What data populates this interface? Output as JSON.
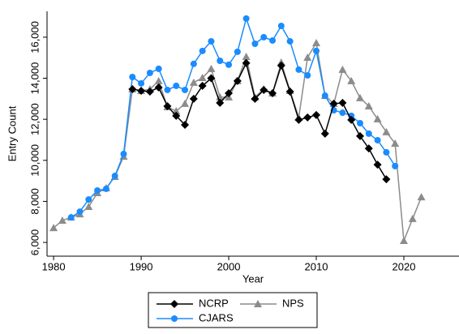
{
  "chart_data": {
    "type": "line",
    "xlabel": "Year",
    "ylabel": "Entry Count",
    "x": [
      1980,
      1981,
      1982,
      1983,
      1984,
      1985,
      1986,
      1987,
      1988,
      1989,
      1990,
      1991,
      1992,
      1993,
      1994,
      1995,
      1996,
      1997,
      1998,
      1999,
      2000,
      2001,
      2002,
      2003,
      2004,
      2005,
      2006,
      2007,
      2008,
      2009,
      2010,
      2011,
      2012,
      2013,
      2014,
      2015,
      2016,
      2017,
      2018,
      2019,
      2020,
      2021,
      2022
    ],
    "series": [
      {
        "name": "NCRP",
        "color": "#000000",
        "marker": "diamond",
        "values": [
          null,
          null,
          null,
          null,
          null,
          null,
          null,
          null,
          null,
          13470,
          13390,
          13350,
          13550,
          12640,
          12170,
          11730,
          13000,
          13630,
          14000,
          12800,
          13270,
          13870,
          14740,
          13000,
          13430,
          13270,
          14620,
          13350,
          11970,
          12090,
          12210,
          11300,
          12760,
          12800,
          11970,
          11180,
          10580,
          9790,
          9080,
          null,
          null,
          null,
          null
        ]
      },
      {
        "name": "NPS",
        "color": "#8c8c8c",
        "marker": "triangle",
        "values": [
          6710,
          7070,
          7220,
          7380,
          7740,
          8410,
          8650,
          9200,
          10190,
          13470,
          13390,
          13470,
          13870,
          12600,
          12400,
          12760,
          13790,
          14020,
          14460,
          13080,
          13080,
          13870,
          15050,
          13080,
          13470,
          13270,
          14770,
          13390,
          12090,
          15010,
          15720,
          13150,
          12760,
          14420,
          13870,
          13040,
          12640,
          12010,
          11380,
          10820,
          6080,
          7150,
          8210
        ]
      },
      {
        "name": "CJARS",
        "color": "#1a8cff",
        "marker": "circle",
        "values": [
          null,
          null,
          7220,
          7500,
          8090,
          8530,
          8610,
          9240,
          10310,
          14060,
          13750,
          14260,
          14460,
          13430,
          13630,
          13430,
          14700,
          15330,
          15800,
          14850,
          14660,
          15290,
          16910,
          15680,
          16000,
          15840,
          16550,
          15800,
          14420,
          14140,
          15330,
          13150,
          12440,
          12320,
          12170,
          11810,
          11300,
          10980,
          10390,
          9720,
          null,
          null,
          null
        ]
      }
    ],
    "xlim": [
      1979.25,
      2026.3
    ],
    "xticks": [
      1980,
      1990,
      2000,
      2010,
      2020
    ],
    "ylim": [
      5330,
      17260
    ],
    "yticks": [
      {
        "value": 6000,
        "label": "6,000"
      },
      {
        "value": 8000,
        "label": "8,000"
      },
      {
        "value": 10000,
        "label": "10,000"
      },
      {
        "value": 12000,
        "label": "12,000"
      },
      {
        "value": 14000,
        "label": "14,000"
      },
      {
        "value": 16000,
        "label": "16,000"
      }
    ],
    "grid": false,
    "legend": "bottom"
  }
}
